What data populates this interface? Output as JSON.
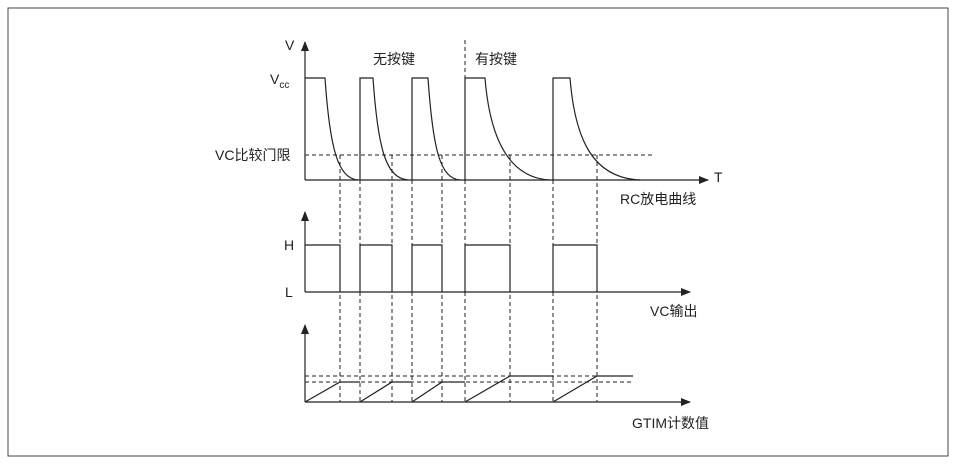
{
  "rc_graph": {
    "y_axis_label": "V",
    "vcc_label": "V",
    "vcc_subscript": "cc",
    "no_key_label": "无按键",
    "key_label": "有按键",
    "threshold_label": "VC比较门限",
    "x_axis_label": "T",
    "caption": "RC放电曲线"
  },
  "vc_output": {
    "high_label": "H",
    "low_label": "L",
    "caption": "VC输出"
  },
  "gtim": {
    "caption": "GTIM计数值"
  }
}
